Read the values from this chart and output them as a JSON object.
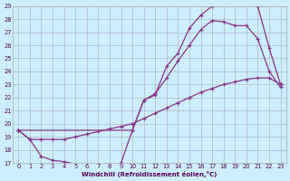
{
  "xlabel": "Windchill (Refroidissement éolien,°C)",
  "background_color": "#cceeff",
  "grid_color": "#aaaaaa",
  "line_color": "#883388",
  "xlim": [
    -0.5,
    23.5
  ],
  "ylim": [
    17,
    29
  ],
  "xticks": [
    0,
    1,
    2,
    3,
    4,
    5,
    6,
    7,
    8,
    9,
    10,
    11,
    12,
    13,
    14,
    15,
    16,
    17,
    18,
    19,
    20,
    21,
    22,
    23
  ],
  "yticks": [
    17,
    18,
    19,
    20,
    21,
    22,
    23,
    24,
    25,
    26,
    27,
    28,
    29
  ],
  "line1_x": [
    0,
    1,
    2,
    3,
    4,
    5,
    6,
    7,
    8,
    9,
    10,
    11,
    12,
    13,
    14,
    15,
    16,
    17,
    18,
    19,
    20,
    21,
    22,
    23
  ],
  "line1_y": [
    19.5,
    18.8,
    17.5,
    17.2,
    17.1,
    16.9,
    16.85,
    16.75,
    16.75,
    17.0,
    19.5,
    21.8,
    22.2,
    24.4,
    25.4,
    27.3,
    28.3,
    29.0,
    29.1,
    29.2,
    29.2,
    29.0,
    25.8,
    23.0
  ],
  "line2_x": [
    0,
    10,
    11,
    12,
    13,
    14,
    15,
    16,
    17,
    18,
    19,
    20,
    21,
    22,
    23
  ],
  "line2_y": [
    19.5,
    19.5,
    21.8,
    22.3,
    23.5,
    24.8,
    26.0,
    27.2,
    27.9,
    27.8,
    27.5,
    27.5,
    26.5,
    24.0,
    22.8
  ],
  "line3_x": [
    0,
    1,
    2,
    3,
    4,
    5,
    6,
    7,
    8,
    9,
    10,
    11,
    12,
    13,
    14,
    15,
    16,
    17,
    18,
    19,
    20,
    21,
    22,
    23
  ],
  "line3_y": [
    19.5,
    18.8,
    18.8,
    18.8,
    18.8,
    19.0,
    19.2,
    19.4,
    19.6,
    19.8,
    20.0,
    20.4,
    20.8,
    21.2,
    21.6,
    22.0,
    22.4,
    22.7,
    23.0,
    23.2,
    23.4,
    23.5,
    23.5,
    23.0
  ]
}
